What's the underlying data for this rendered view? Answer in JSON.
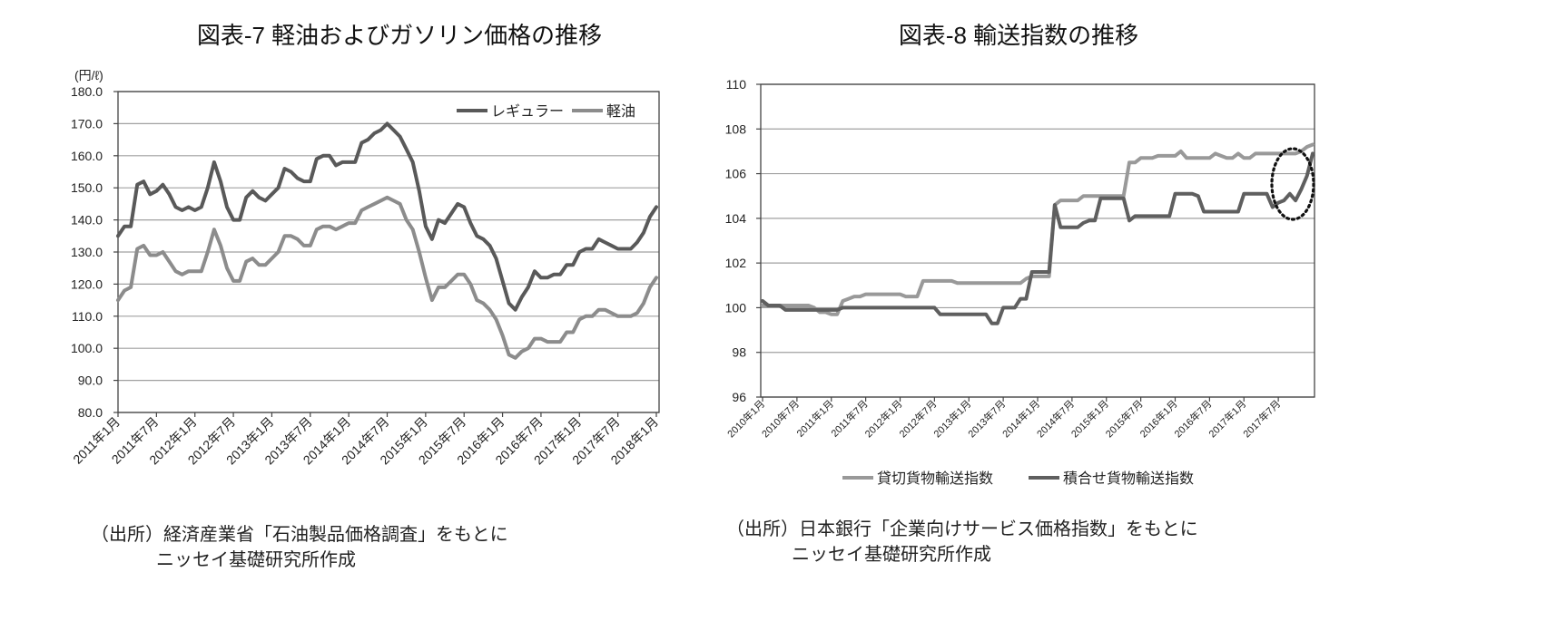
{
  "chart_data": [
    {
      "type": "line",
      "title": "図表-7 軽油およびガソリン価格の推移",
      "ylabel": "(円/ℓ)",
      "ylim": [
        80,
        180
      ],
      "y_tick_labels": [
        "180.0",
        "170.0",
        "160.0",
        "150.0",
        "140.0",
        "130.0",
        "120.0",
        "110.0",
        "100.0",
        "90.0",
        "80.0"
      ],
      "x_tick_labels": [
        "2011年1月",
        "2011年7月",
        "2012年1月",
        "2012年7月",
        "2013年1月",
        "2013年7月",
        "2014年1月",
        "2014年7月",
        "2015年1月",
        "2015年7月",
        "2016年1月",
        "2016年7月",
        "2017年1月",
        "2017年7月",
        "2018年1月"
      ],
      "grid": true,
      "legend": "top-right",
      "x": [
        "2011-01",
        "2011-02",
        "2011-03",
        "2011-04",
        "2011-05",
        "2011-06",
        "2011-07",
        "2011-08",
        "2011-09",
        "2011-10",
        "2011-11",
        "2011-12",
        "2012-01",
        "2012-02",
        "2012-03",
        "2012-04",
        "2012-05",
        "2012-06",
        "2012-07",
        "2012-08",
        "2012-09",
        "2012-10",
        "2012-11",
        "2012-12",
        "2013-01",
        "2013-02",
        "2013-03",
        "2013-04",
        "2013-05",
        "2013-06",
        "2013-07",
        "2013-08",
        "2013-09",
        "2013-10",
        "2013-11",
        "2013-12",
        "2014-01",
        "2014-02",
        "2014-03",
        "2014-04",
        "2014-05",
        "2014-06",
        "2014-07",
        "2014-08",
        "2014-09",
        "2014-10",
        "2014-11",
        "2014-12",
        "2015-01",
        "2015-02",
        "2015-03",
        "2015-04",
        "2015-05",
        "2015-06",
        "2015-07",
        "2015-08",
        "2015-09",
        "2015-10",
        "2015-11",
        "2015-12",
        "2016-01",
        "2016-02",
        "2016-03",
        "2016-04",
        "2016-05",
        "2016-06",
        "2016-07",
        "2016-08",
        "2016-09",
        "2016-10",
        "2016-11",
        "2016-12",
        "2017-01",
        "2017-02",
        "2017-03",
        "2017-04",
        "2017-05",
        "2017-06",
        "2017-07",
        "2017-08",
        "2017-09",
        "2017-10",
        "2017-11",
        "2017-12",
        "2018-01"
      ],
      "series": [
        {
          "name": "レギュラー",
          "color": "#595959",
          "values": [
            135,
            138,
            138,
            151,
            152,
            148,
            149,
            151,
            148,
            144,
            143,
            144,
            143,
            144,
            150,
            158,
            152,
            144,
            140,
            140,
            147,
            149,
            147,
            146,
            148,
            150,
            156,
            155,
            153,
            152,
            152,
            159,
            160,
            160,
            157,
            158,
            158,
            158,
            164,
            165,
            167,
            168,
            170,
            168,
            166,
            162,
            158,
            149,
            138,
            134,
            140,
            139,
            142,
            145,
            144,
            139,
            135,
            134,
            132,
            128,
            121,
            114,
            112,
            116,
            119,
            124,
            122,
            122,
            123,
            123,
            126,
            126,
            130,
            131,
            131,
            134,
            133,
            132,
            131,
            131,
            131,
            133,
            136,
            141,
            144
          ]
        },
        {
          "name": "軽油",
          "color": "#8c8c8c",
          "values": [
            115,
            118,
            119,
            131,
            132,
            129,
            129,
            130,
            127,
            124,
            123,
            124,
            124,
            124,
            130,
            137,
            132,
            125,
            121,
            121,
            127,
            128,
            126,
            126,
            128,
            130,
            135,
            135,
            134,
            132,
            132,
            137,
            138,
            138,
            137,
            138,
            139,
            139,
            143,
            144,
            145,
            146,
            147,
            146,
            145,
            140,
            137,
            130,
            122,
            115,
            119,
            119,
            121,
            123,
            123,
            120,
            115,
            114,
            112,
            109,
            104,
            98,
            97,
            99,
            100,
            103,
            103,
            102,
            102,
            102,
            105,
            105,
            109,
            110,
            110,
            112,
            112,
            111,
            110,
            110,
            110,
            111,
            114,
            119,
            122
          ]
        }
      ],
      "source": [
        "（出所）経済産業省「石油製品価格調査」をもとに",
        "ニッセイ基礎研究所作成"
      ]
    },
    {
      "type": "line",
      "title": "図表-8 輸送指数の推移",
      "ylim": [
        96,
        110
      ],
      "y_tick_labels": [
        "110",
        "108",
        "106",
        "104",
        "102",
        "100",
        "98",
        "96"
      ],
      "x_tick_labels": [
        "2010年1月",
        "2010年7月",
        "2011年1月",
        "2011年7月",
        "2012年1月",
        "2012年7月",
        "2013年1月",
        "2013年7月",
        "2014年1月",
        "2014年7月",
        "2015年1月",
        "2015年7月",
        "2016年1月",
        "2016年7月",
        "2017年1月",
        "2017年7月"
      ],
      "grid": true,
      "legend": "bottom",
      "x": [
        "2010-01",
        "2010-02",
        "2010-03",
        "2010-04",
        "2010-05",
        "2010-06",
        "2010-07",
        "2010-08",
        "2010-09",
        "2010-10",
        "2010-11",
        "2010-12",
        "2011-01",
        "2011-02",
        "2011-03",
        "2011-04",
        "2011-05",
        "2011-06",
        "2011-07",
        "2011-08",
        "2011-09",
        "2011-10",
        "2011-11",
        "2011-12",
        "2012-01",
        "2012-02",
        "2012-03",
        "2012-04",
        "2012-05",
        "2012-06",
        "2012-07",
        "2012-08",
        "2012-09",
        "2012-10",
        "2012-11",
        "2012-12",
        "2013-01",
        "2013-02",
        "2013-03",
        "2013-04",
        "2013-05",
        "2013-06",
        "2013-07",
        "2013-08",
        "2013-09",
        "2013-10",
        "2013-11",
        "2013-12",
        "2014-01",
        "2014-02",
        "2014-03",
        "2014-04",
        "2014-05",
        "2014-06",
        "2014-07",
        "2014-08",
        "2014-09",
        "2014-10",
        "2014-11",
        "2014-12",
        "2015-01",
        "2015-02",
        "2015-03",
        "2015-04",
        "2015-05",
        "2015-06",
        "2015-07",
        "2015-08",
        "2015-09",
        "2015-10",
        "2015-11",
        "2015-12",
        "2016-01",
        "2016-02",
        "2016-03",
        "2016-04",
        "2016-05",
        "2016-06",
        "2016-07",
        "2016-08",
        "2016-09",
        "2016-10",
        "2016-11",
        "2016-12",
        "2017-01",
        "2017-02",
        "2017-03",
        "2017-04",
        "2017-05",
        "2017-06",
        "2017-07",
        "2017-08",
        "2017-09",
        "2017-10",
        "2017-11",
        "2017-12",
        "2018-01"
      ],
      "series": [
        {
          "name": "貸切貨物輸送指数",
          "color": "#999999",
          "values": [
            100.1,
            100.1,
            100.1,
            100.1,
            100.1,
            100.1,
            100.1,
            100.1,
            100.1,
            100.0,
            99.8,
            99.8,
            99.7,
            99.7,
            100.3,
            100.4,
            100.5,
            100.5,
            100.6,
            100.6,
            100.6,
            100.6,
            100.6,
            100.6,
            100.6,
            100.5,
            100.5,
            100.5,
            101.2,
            101.2,
            101.2,
            101.2,
            101.2,
            101.2,
            101.1,
            101.1,
            101.1,
            101.1,
            101.1,
            101.1,
            101.1,
            101.1,
            101.1,
            101.1,
            101.1,
            101.1,
            101.3,
            101.4,
            101.4,
            101.4,
            101.4,
            104.6,
            104.8,
            104.8,
            104.8,
            104.8,
            105.0,
            105.0,
            105.0,
            105.0,
            105.0,
            105.0,
            105.0,
            105.0,
            106.5,
            106.5,
            106.7,
            106.7,
            106.7,
            106.8,
            106.8,
            106.8,
            106.8,
            107.0,
            106.7,
            106.7,
            106.7,
            106.7,
            106.7,
            106.9,
            106.8,
            106.7,
            106.7,
            106.9,
            106.7,
            106.7,
            106.9,
            106.9,
            106.9,
            106.9,
            106.9,
            106.9,
            106.9,
            106.9,
            107.0,
            107.2,
            107.3
          ]
        },
        {
          "name": "積合せ貨物輸送指数",
          "color": "#5f5f5f",
          "values": [
            100.3,
            100.1,
            100.1,
            100.1,
            99.9,
            99.9,
            99.9,
            99.9,
            99.9,
            99.9,
            99.9,
            99.9,
            99.9,
            99.9,
            100.0,
            100.0,
            100.0,
            100.0,
            100.0,
            100.0,
            100.0,
            100.0,
            100.0,
            100.0,
            100.0,
            100.0,
            100.0,
            100.0,
            100.0,
            100.0,
            100.0,
            99.7,
            99.7,
            99.7,
            99.7,
            99.7,
            99.7,
            99.7,
            99.7,
            99.7,
            99.3,
            99.3,
            100.0,
            100.0,
            100.0,
            100.4,
            100.4,
            101.6,
            101.6,
            101.6,
            101.6,
            104.6,
            103.6,
            103.6,
            103.6,
            103.6,
            103.8,
            103.9,
            103.9,
            104.9,
            104.9,
            104.9,
            104.9,
            104.9,
            103.9,
            104.1,
            104.1,
            104.1,
            104.1,
            104.1,
            104.1,
            104.1,
            105.1,
            105.1,
            105.1,
            105.1,
            105.0,
            104.3,
            104.3,
            104.3,
            104.3,
            104.3,
            104.3,
            104.3,
            105.1,
            105.1,
            105.1,
            105.1,
            105.1,
            104.5,
            104.7,
            104.8,
            105.1,
            104.8,
            105.3,
            105.9,
            106.9
          ]
        }
      ],
      "source": [
        "（出所）日本銀行「企業向けサービス価格指数」をもとに",
        "ニッセイ基礎研究所作成"
      ]
    }
  ]
}
